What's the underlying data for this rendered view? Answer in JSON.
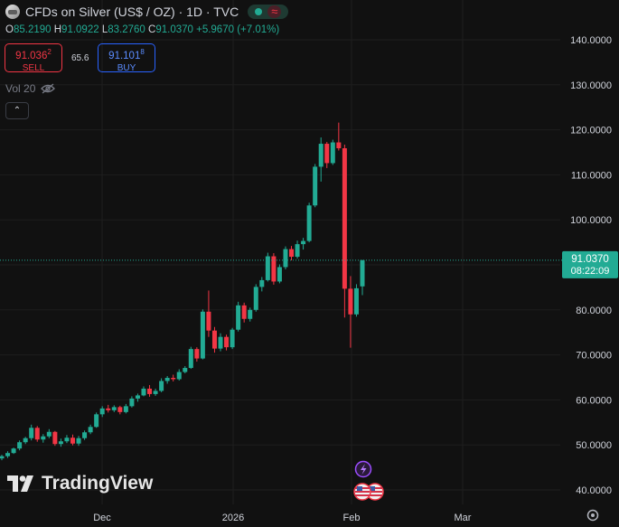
{
  "header": {
    "title": "CFDs on Silver (US$ / OZ) · 1D · TVC",
    "market_status_icon": "green-dot",
    "tilde_icon": "≈"
  },
  "ohlc": {
    "o_label": "O",
    "o": "85.2190",
    "h_label": "H",
    "h": "91.0922",
    "l_label": "L",
    "l": "83.2760",
    "c_label": "C",
    "c": "91.0370",
    "change": "+5.9670 (+7.01%)"
  },
  "trade": {
    "sell_price": "91.036",
    "sell_sup": "2",
    "sell_label": "SELL",
    "spread": "65.6",
    "buy_price": "91.101",
    "buy_sup": "8",
    "buy_label": "BUY"
  },
  "volume": {
    "label": "Vol 20"
  },
  "collapse_label": "⌃",
  "logo": {
    "text": "TradingView"
  },
  "price_label": {
    "price": "91.0370",
    "countdown": "08:22:09"
  },
  "colors": {
    "up": "#22ab94",
    "down": "#f23645",
    "bg": "#111111",
    "grid": "#1e1e1e",
    "text": "#d1d4dc"
  },
  "chart_data": {
    "type": "candlestick",
    "y_ticks": [
      "140.0000",
      "130.0000",
      "120.0000",
      "110.0000",
      "100.0000",
      "90.0000",
      "80.0000",
      "70.0000",
      "60.0000",
      "50.0000",
      "40.0000"
    ],
    "y_range": [
      37.5,
      145
    ],
    "x_ticks": [
      "Dec",
      "2026",
      "Feb",
      "Mar"
    ],
    "current_price": 91.037,
    "candles": [
      [
        47.0,
        47.8,
        46.6,
        47.5
      ],
      [
        47.5,
        48.6,
        47.1,
        48.2
      ],
      [
        48.2,
        49.4,
        48.0,
        49.2
      ],
      [
        49.2,
        51.0,
        48.8,
        50.6
      ],
      [
        50.6,
        51.8,
        50.2,
        51.5
      ],
      [
        51.5,
        54.5,
        51.0,
        53.8
      ],
      [
        53.8,
        54.2,
        50.7,
        51.2
      ],
      [
        51.2,
        52.4,
        50.5,
        51.9
      ],
      [
        51.9,
        53.5,
        51.5,
        52.9
      ],
      [
        52.9,
        53.1,
        49.8,
        50.2
      ],
      [
        50.2,
        51.4,
        49.6,
        50.8
      ],
      [
        50.8,
        52.2,
        50.4,
        51.6
      ],
      [
        51.6,
        52.3,
        49.9,
        50.3
      ],
      [
        50.3,
        52.0,
        49.8,
        51.5
      ],
      [
        51.5,
        53.2,
        51.1,
        52.8
      ],
      [
        52.8,
        54.5,
        52.4,
        54.0
      ],
      [
        54.0,
        57.2,
        53.8,
        56.8
      ],
      [
        56.8,
        58.6,
        56.2,
        58.1
      ],
      [
        58.1,
        58.9,
        57.2,
        57.7
      ],
      [
        57.7,
        58.8,
        57.3,
        58.4
      ],
      [
        58.4,
        58.7,
        56.8,
        57.3
      ],
      [
        57.3,
        59.1,
        57.0,
        58.6
      ],
      [
        58.6,
        60.8,
        58.3,
        60.3
      ],
      [
        60.3,
        61.4,
        59.6,
        61.0
      ],
      [
        61.0,
        63.0,
        60.8,
        62.5
      ],
      [
        62.5,
        63.3,
        60.7,
        61.3
      ],
      [
        61.3,
        62.5,
        60.9,
        62.0
      ],
      [
        62.0,
        64.8,
        61.7,
        64.2
      ],
      [
        64.2,
        65.3,
        63.6,
        64.9
      ],
      [
        64.9,
        65.6,
        64.1,
        64.6
      ],
      [
        64.6,
        66.8,
        64.3,
        66.2
      ],
      [
        66.2,
        67.5,
        65.9,
        67.1
      ],
      [
        67.1,
        71.8,
        66.9,
        71.3
      ],
      [
        71.3,
        71.7,
        68.5,
        69.2
      ],
      [
        69.2,
        80.1,
        69.0,
        79.6
      ],
      [
        79.6,
        84.3,
        74.0,
        75.4
      ],
      [
        75.4,
        76.2,
        70.5,
        71.4
      ],
      [
        71.4,
        74.8,
        70.8,
        74.0
      ],
      [
        74.0,
        74.5,
        71.0,
        71.7
      ],
      [
        71.7,
        76.0,
        71.3,
        75.6
      ],
      [
        75.6,
        81.8,
        75.2,
        81.0
      ],
      [
        81.0,
        81.6,
        77.2,
        78.0
      ],
      [
        78.0,
        80.5,
        77.4,
        80.0
      ],
      [
        80.0,
        85.7,
        79.6,
        85.1
      ],
      [
        85.1,
        87.3,
        84.1,
        86.6
      ],
      [
        86.6,
        92.7,
        86.3,
        91.9
      ],
      [
        91.9,
        92.6,
        85.6,
        86.3
      ],
      [
        86.3,
        90.1,
        85.9,
        89.5
      ],
      [
        89.5,
        94.1,
        89.0,
        93.5
      ],
      [
        93.5,
        94.2,
        91.0,
        91.8
      ],
      [
        91.8,
        95.4,
        91.4,
        94.6
      ],
      [
        94.6,
        96.0,
        93.4,
        95.3
      ],
      [
        95.3,
        103.8,
        95.0,
        103.2
      ],
      [
        103.2,
        112.4,
        102.8,
        111.8
      ],
      [
        111.8,
        118.3,
        108.5,
        116.9
      ],
      [
        116.9,
        117.3,
        111.5,
        112.6
      ],
      [
        112.6,
        117.8,
        112.2,
        117.2
      ],
      [
        117.2,
        121.6,
        115.4,
        115.9
      ],
      [
        115.9,
        116.7,
        78.3,
        84.7
      ],
      [
        84.7,
        87.5,
        71.6,
        79.0
      ],
      [
        79.0,
        85.7,
        78.5,
        84.8
      ],
      [
        85.22,
        91.09,
        83.28,
        91.04
      ]
    ]
  }
}
